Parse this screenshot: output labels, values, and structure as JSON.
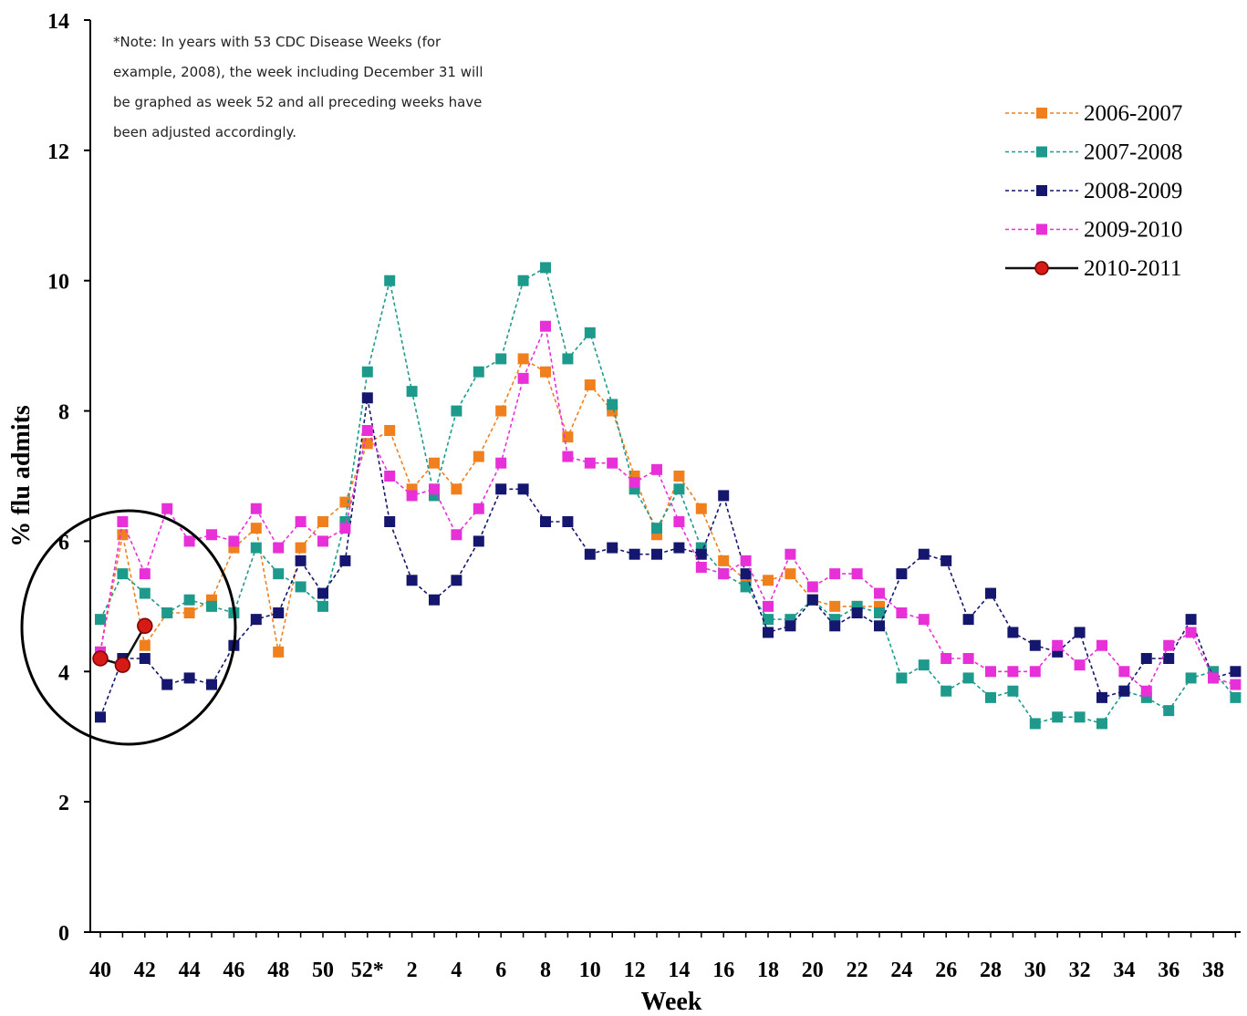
{
  "chart_data": {
    "type": "line",
    "title": "",
    "xlabel": "Week",
    "ylabel": "% flu admits",
    "ylim": [
      0,
      14
    ],
    "yticks": [
      0,
      2,
      4,
      6,
      8,
      10,
      12,
      14
    ],
    "x_categories": [
      "40",
      "41",
      "42",
      "43",
      "44",
      "45",
      "46",
      "47",
      "48",
      "49",
      "50",
      "51",
      "52*",
      "1",
      "2",
      "3",
      "4",
      "5",
      "6",
      "7",
      "8",
      "9",
      "10",
      "11",
      "12",
      "13",
      "14",
      "15",
      "16",
      "17",
      "18",
      "19",
      "20",
      "21",
      "22",
      "23",
      "24",
      "25",
      "26",
      "27",
      "28",
      "29",
      "30",
      "31",
      "32",
      "33",
      "34",
      "35",
      "36",
      "37",
      "38",
      "39"
    ],
    "x_tick_labels": [
      "40",
      "42",
      "44",
      "46",
      "48",
      "50",
      "52*",
      "2",
      "4",
      "6",
      "8",
      "10",
      "12",
      "14",
      "16",
      "18",
      "20",
      "22",
      "24",
      "26",
      "28",
      "30",
      "32",
      "34",
      "36",
      "38"
    ],
    "grid": false,
    "legend_position": "top-right",
    "note": [
      "*Note: In years with 53 CDC Disease Weeks (for",
      "example, 2008), the week including December 31 will",
      "be graphed as week 52 and all preceding weeks have",
      "been adjusted accordingly."
    ],
    "annotation": "circle around weeks 40-42",
    "series": [
      {
        "name": "2006-2007",
        "color": "#f07f1e",
        "line": "dashed",
        "marker": "square",
        "values": [
          4.3,
          6.1,
          4.4,
          4.9,
          4.9,
          5.1,
          5.9,
          6.2,
          4.3,
          5.9,
          6.3,
          6.6,
          7.5,
          7.7,
          6.8,
          7.2,
          6.8,
          7.3,
          8.0,
          8.8,
          8.6,
          7.6,
          8.4,
          8.0,
          7.0,
          6.1,
          7.0,
          6.5,
          5.7,
          5.4,
          5.4,
          5.5,
          5.1,
          5.0,
          5.0,
          5.0,
          null,
          null,
          null,
          null,
          null,
          null,
          null,
          null,
          null,
          null,
          null,
          null,
          null,
          null,
          null,
          null
        ]
      },
      {
        "name": "2007-2008",
        "color": "#1d9a8c",
        "line": "dashed",
        "marker": "square",
        "values": [
          4.8,
          5.5,
          5.2,
          4.9,
          5.1,
          5.0,
          4.9,
          5.9,
          5.5,
          5.3,
          5.0,
          6.3,
          8.6,
          10.0,
          8.3,
          6.7,
          8.0,
          8.6,
          8.8,
          10.0,
          10.2,
          8.8,
          9.2,
          8.1,
          6.8,
          6.2,
          6.8,
          5.9,
          5.5,
          5.3,
          4.8,
          4.8,
          5.1,
          4.8,
          5.0,
          4.9,
          3.9,
          4.1,
          3.7,
          3.9,
          3.6,
          3.7,
          3.2,
          3.3,
          3.3,
          3.2,
          3.7,
          3.6,
          3.4,
          3.9,
          4.0,
          3.6
        ]
      },
      {
        "name": "2008-2009",
        "color": "#15166e",
        "line": "dashed",
        "marker": "square",
        "values": [
          3.3,
          4.2,
          4.2,
          3.8,
          3.9,
          3.8,
          4.4,
          4.8,
          4.9,
          5.7,
          5.2,
          5.7,
          8.2,
          6.3,
          5.4,
          5.1,
          5.4,
          6.0,
          6.8,
          6.8,
          6.3,
          6.3,
          5.8,
          5.9,
          5.8,
          5.8,
          5.9,
          5.8,
          6.7,
          5.5,
          4.6,
          4.7,
          5.1,
          4.7,
          4.9,
          4.7,
          5.5,
          5.8,
          5.7,
          4.8,
          5.2,
          4.6,
          4.4,
          4.3,
          4.6,
          3.6,
          3.7,
          4.2,
          4.2,
          4.8,
          3.9,
          4.0
        ]
      },
      {
        "name": "2009-2010",
        "color": "#e830d8",
        "line": "dashed",
        "marker": "square",
        "values": [
          4.3,
          6.3,
          5.5,
          6.5,
          6.0,
          6.1,
          6.0,
          6.5,
          5.9,
          6.3,
          6.0,
          6.2,
          7.7,
          7.0,
          6.7,
          6.8,
          6.1,
          6.5,
          7.2,
          8.5,
          9.3,
          7.3,
          7.2,
          7.2,
          6.9,
          7.1,
          6.3,
          5.6,
          5.5,
          5.7,
          5.0,
          5.8,
          5.3,
          5.5,
          5.5,
          5.2,
          4.9,
          4.8,
          4.2,
          4.2,
          4.0,
          4.0,
          4.0,
          4.4,
          4.1,
          4.4,
          4.0,
          3.7,
          4.4,
          4.6,
          3.9,
          3.8
        ]
      },
      {
        "name": "2010-2011",
        "color": "#d61b17",
        "line": "solid",
        "marker": "circle",
        "values": [
          4.2,
          4.1,
          4.7
        ]
      }
    ]
  }
}
